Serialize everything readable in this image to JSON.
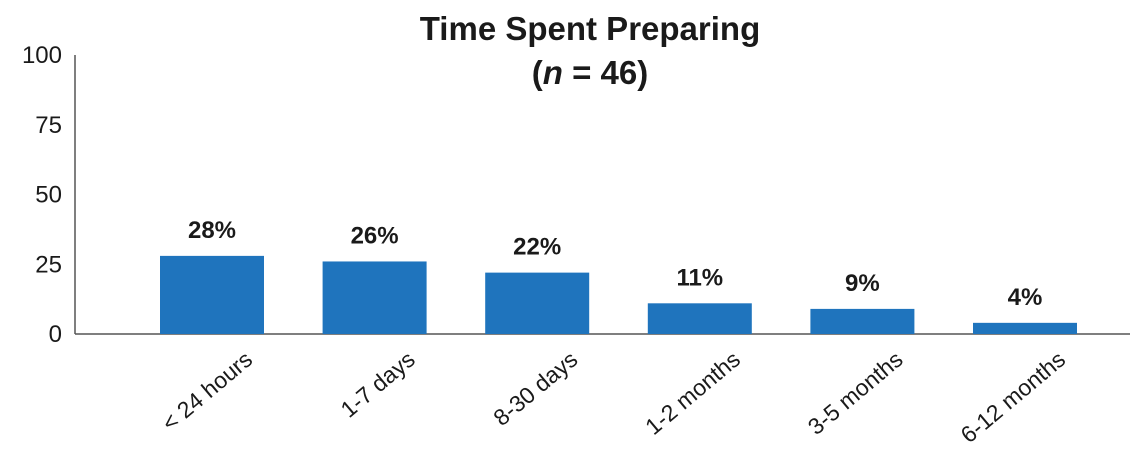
{
  "chart_data": {
    "type": "bar",
    "title": "Time Spent Preparing",
    "subtitle_parts": {
      "open": "(",
      "n": "n",
      "rest": " = 46)"
    },
    "categories": [
      "< 24 hours",
      "1-7 days",
      "8-30 days",
      "1-2 months",
      "3-5 months",
      "6-12 months"
    ],
    "values": [
      28,
      26,
      22,
      11,
      9,
      4
    ],
    "value_labels": [
      "28%",
      "26%",
      "22%",
      "11%",
      "9%",
      "4%"
    ],
    "yticks": [
      "0",
      "25",
      "50",
      "75",
      "100"
    ],
    "ylim": [
      0,
      100
    ],
    "xlabel": "",
    "ylabel": "",
    "grid": false,
    "bar_color": "#1f74bd",
    "axis_color": "#555555"
  }
}
